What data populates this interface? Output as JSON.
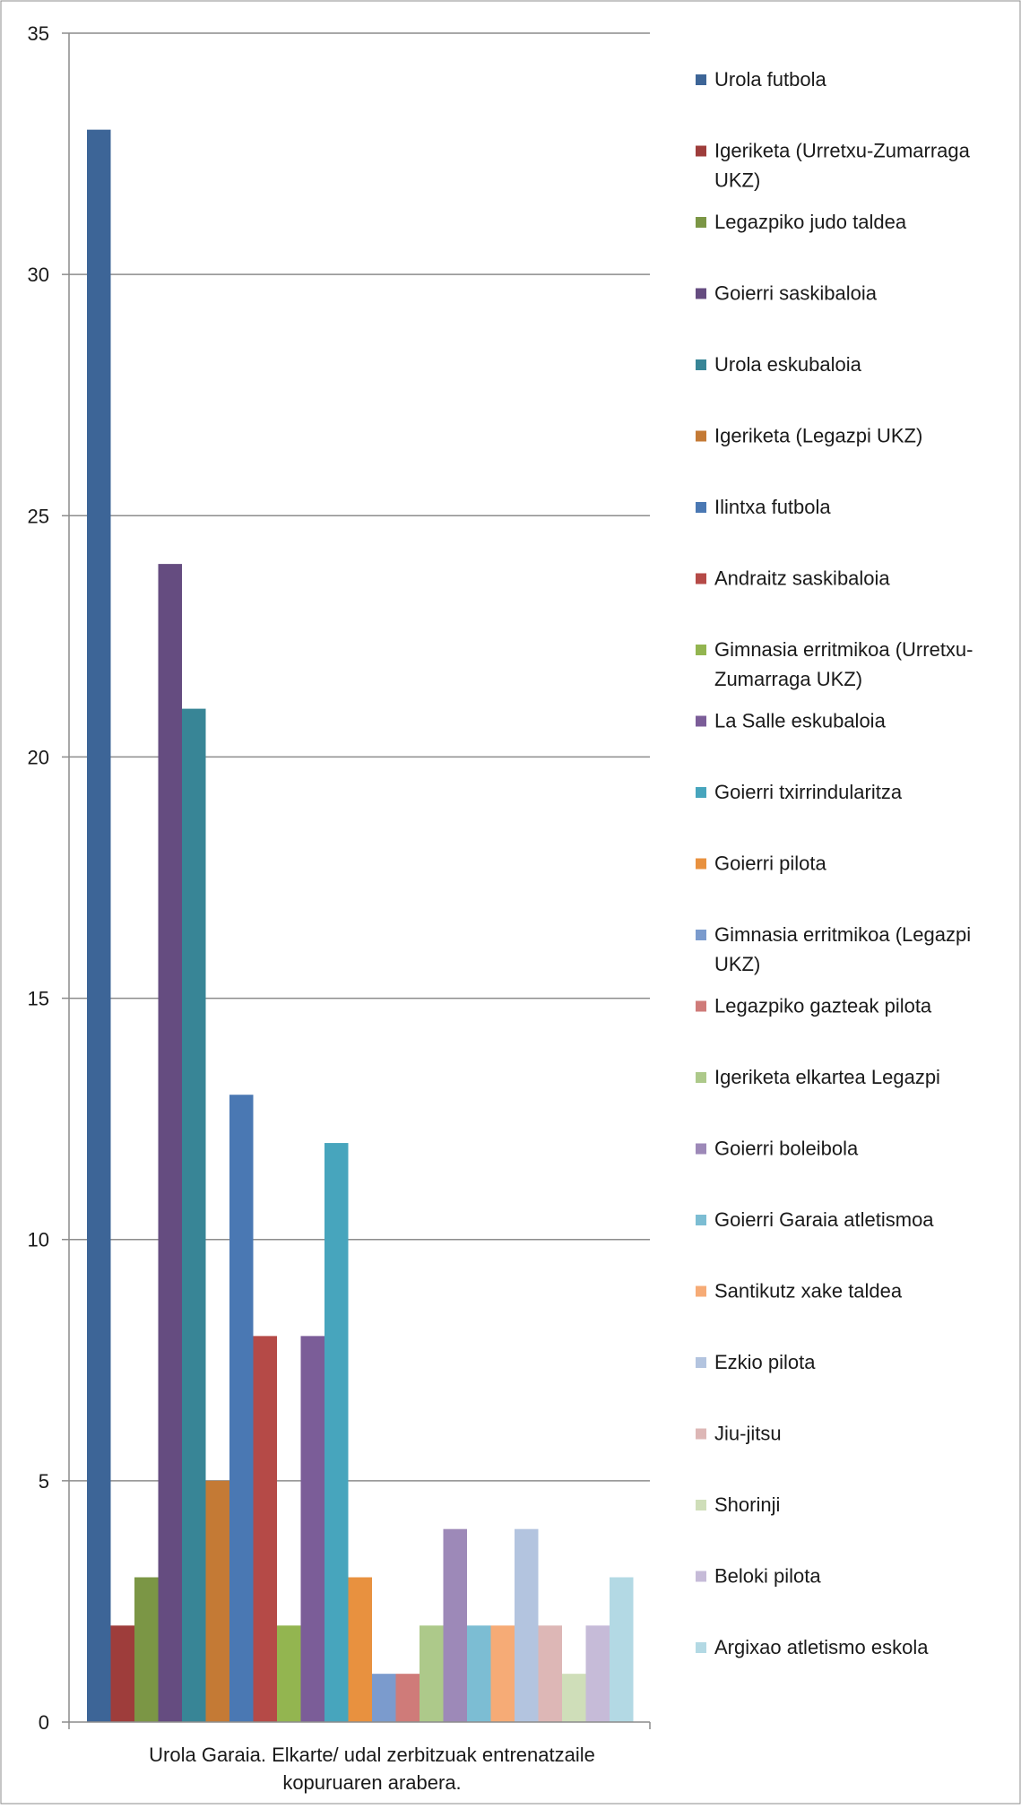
{
  "chart_data": {
    "type": "bar",
    "title": "",
    "xlabel": "Urola Garaia. Elkarte/ udal zerbitzuak entrenatzaile kopuruaren arabera.",
    "xlabel_lines": [
      "Urola Garaia. Elkarte/ udal zerbitzuak entrenatzaile",
      "kopuruaren arabera."
    ],
    "ylabel": "",
    "ylim": [
      0,
      35
    ],
    "yticks": [
      0,
      5,
      10,
      15,
      20,
      25,
      30,
      35
    ],
    "grid": true,
    "legend_position": "right",
    "series": [
      {
        "name": "Urola futbola",
        "values": [
          33
        ],
        "color": "#3d6597",
        "legend_lines": [
          "Urola futbola"
        ]
      },
      {
        "name": "Igeriketa (Urretxu-Zumarraga UKZ)",
        "values": [
          2
        ],
        "color": "#9e3d3b",
        "legend_lines": [
          "Igeriketa (Urretxu-Zumarraga",
          "UKZ)"
        ]
      },
      {
        "name": "Legazpiko judo taldea",
        "values": [
          3
        ],
        "color": "#7b9645",
        "legend_lines": [
          "Legazpiko judo taldea"
        ]
      },
      {
        "name": "Goierri saskibaloia",
        "values": [
          24
        ],
        "color": "#654c80",
        "legend_lines": [
          "Goierri saskibaloia"
        ]
      },
      {
        "name": "Urola eskubaloia",
        "values": [
          21
        ],
        "color": "#388596",
        "legend_lines": [
          "Urola eskubaloia"
        ]
      },
      {
        "name": "Igeriketa (Legazpi UKZ)",
        "values": [
          5
        ],
        "color": "#c47a35",
        "legend_lines": [
          "Igeriketa (Legazpi UKZ)"
        ]
      },
      {
        "name": "Ilintxa futbola",
        "values": [
          13
        ],
        "color": "#4a78b3",
        "legend_lines": [
          "Ilintxa futbola"
        ]
      },
      {
        "name": "Andraitz saskibaloia",
        "values": [
          8
        ],
        "color": "#b54a47",
        "legend_lines": [
          "Andraitz saskibaloia"
        ]
      },
      {
        "name": "Gimnasia erritmikoa (Urretxu-Zumarraga UKZ)",
        "values": [
          2
        ],
        "color": "#93b550",
        "legend_lines": [
          "Gimnasia erritmikoa (Urretxu-",
          "Zumarraga UKZ)"
        ]
      },
      {
        "name": "La Salle eskubaloia",
        "values": [
          8
        ],
        "color": "#7b5d98",
        "legend_lines": [
          "La Salle eskubaloia"
        ]
      },
      {
        "name": "Goierri txirrindularitza",
        "values": [
          12
        ],
        "color": "#47a5bd",
        "legend_lines": [
          "Goierri txirrindularitza"
        ]
      },
      {
        "name": "Goierri pilota",
        "values": [
          3
        ],
        "color": "#e8913f",
        "legend_lines": [
          "Goierri pilota"
        ]
      },
      {
        "name": "Gimnasia erritmikoa (Legazpi UKZ)",
        "values": [
          1
        ],
        "color": "#7b9bcd",
        "legend_lines": [
          "Gimnasia erritmikoa (Legazpi",
          "UKZ)"
        ]
      },
      {
        "name": "Legazpiko gazteak pilota",
        "values": [
          1
        ],
        "color": "#cf7b79",
        "legend_lines": [
          "Legazpiko gazteak pilota"
        ]
      },
      {
        "name": "Igeriketa elkartea Legazpi",
        "values": [
          2
        ],
        "color": "#adc98a",
        "legend_lines": [
          "Igeriketa elkartea Legazpi"
        ]
      },
      {
        "name": "Goierri boleibola",
        "values": [
          4
        ],
        "color": "#9d89b8",
        "legend_lines": [
          "Goierri boleibola"
        ]
      },
      {
        "name": "Goierri Garaia atletismoa",
        "values": [
          2
        ],
        "color": "#7cbdd3",
        "legend_lines": [
          "Goierri Garaia atletismoa"
        ]
      },
      {
        "name": "Santikutz xake taldea",
        "values": [
          2
        ],
        "color": "#f6ab76",
        "legend_lines": [
          "Santikutz xake taldea"
        ]
      },
      {
        "name": "Ezkio pilota",
        "values": [
          4
        ],
        "color": "#b3c4df",
        "legend_lines": [
          "Ezkio pilota"
        ]
      },
      {
        "name": "Jiu-jitsu",
        "values": [
          2
        ],
        "color": "#ddb7b6",
        "legend_lines": [
          "Jiu-jitsu"
        ]
      },
      {
        "name": "Shorinji",
        "values": [
          1
        ],
        "color": "#cfdeb9",
        "legend_lines": [
          "Shorinji"
        ]
      },
      {
        "name": "Beloki pilota",
        "values": [
          2
        ],
        "color": "#c6bbd8",
        "legend_lines": [
          "Beloki pilota"
        ]
      },
      {
        "name": "Argixao atletismo eskola",
        "values": [
          3
        ],
        "color": "#b3d9e4",
        "legend_lines": [
          "Argixao atletismo eskola"
        ]
      }
    ]
  }
}
